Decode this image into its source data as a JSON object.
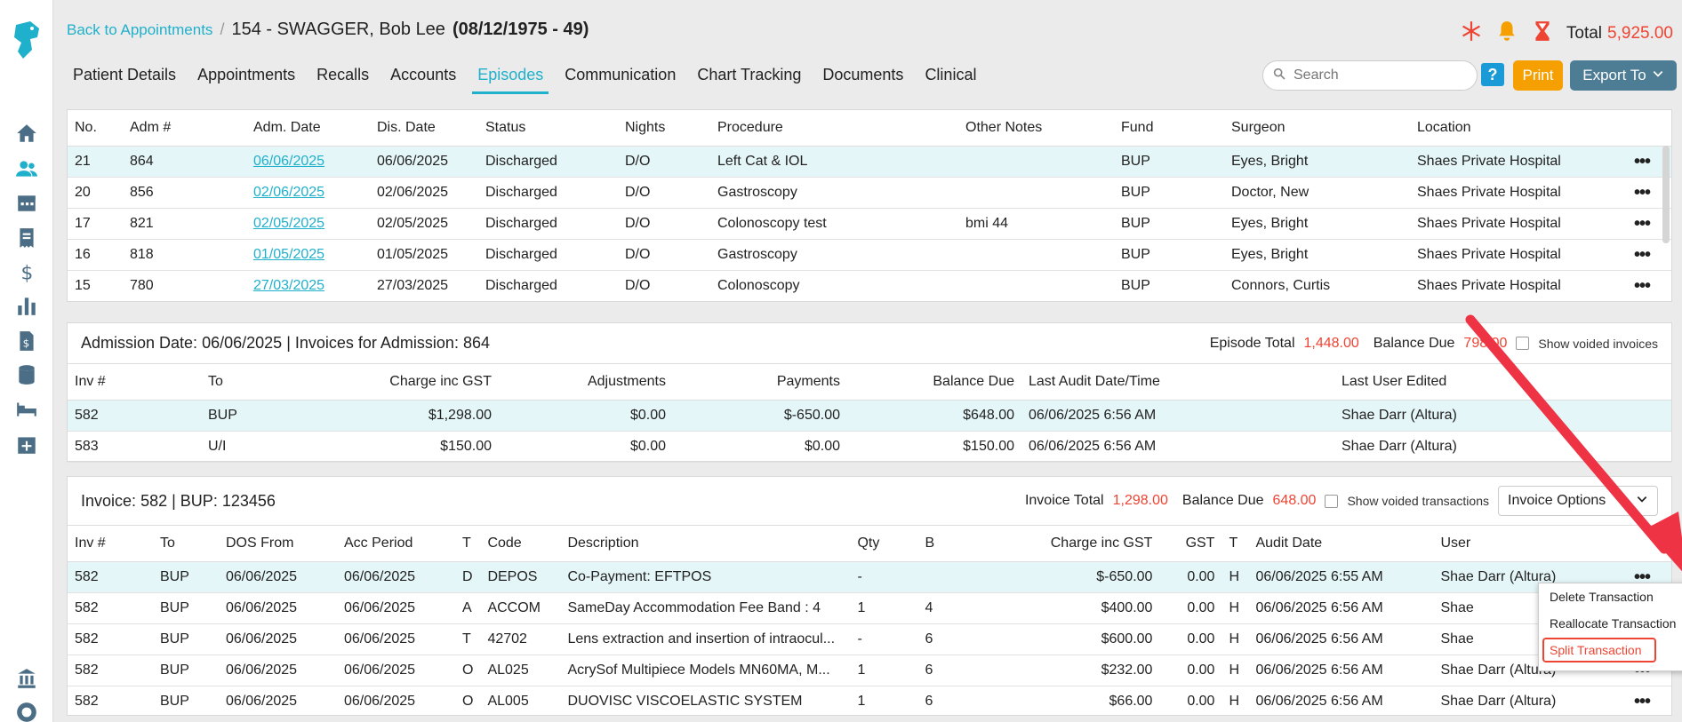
{
  "header": {
    "back_link": "Back to Appointments",
    "separator": "/",
    "patient_title": "154 - SWAGGER, Bob Lee",
    "patient_dob": "(08/12/1975 - 49)",
    "total_label": "Total",
    "total_value": "5,925.00"
  },
  "tabs": [
    {
      "label": "Patient Details"
    },
    {
      "label": "Appointments"
    },
    {
      "label": "Recalls"
    },
    {
      "label": "Accounts"
    },
    {
      "label": "Episodes"
    },
    {
      "label": "Communication"
    },
    {
      "label": "Chart Tracking"
    },
    {
      "label": "Documents"
    },
    {
      "label": "Clinical"
    }
  ],
  "active_tab": "Episodes",
  "toolbar": {
    "search_placeholder": "Search",
    "help_label": "?",
    "print_label": "Print",
    "export_label": "Export To"
  },
  "episodes": {
    "columns": [
      "No.",
      "Adm #",
      "Adm. Date",
      "Dis. Date",
      "Status",
      "Nights",
      "Procedure",
      "Other Notes",
      "Fund",
      "Surgeon",
      "Location"
    ],
    "rows": [
      {
        "no": "21",
        "adm": "864",
        "adm_date": "06/06/2025",
        "dis_date": "06/06/2025",
        "status": "Discharged",
        "nights": "D/O",
        "procedure": "Left Cat & IOL",
        "notes": "",
        "fund": "BUP",
        "surgeon": "Eyes, Bright",
        "location": "Shaes Private Hospital"
      },
      {
        "no": "20",
        "adm": "856",
        "adm_date": "02/06/2025",
        "dis_date": "02/06/2025",
        "status": "Discharged",
        "nights": "D/O",
        "procedure": "Gastroscopy",
        "notes": "",
        "fund": "BUP",
        "surgeon": "Doctor, New",
        "location": "Shaes Private Hospital"
      },
      {
        "no": "17",
        "adm": "821",
        "adm_date": "02/05/2025",
        "dis_date": "02/05/2025",
        "status": "Discharged",
        "nights": "D/O",
        "procedure": "Colonoscopy test",
        "notes": "bmi 44",
        "fund": "BUP",
        "surgeon": "Eyes, Bright",
        "location": "Shaes Private Hospital"
      },
      {
        "no": "16",
        "adm": "818",
        "adm_date": "01/05/2025",
        "dis_date": "01/05/2025",
        "status": "Discharged",
        "nights": "D/O",
        "procedure": "Gastroscopy",
        "notes": "",
        "fund": "BUP",
        "surgeon": "Eyes, Bright",
        "location": "Shaes Private Hospital"
      },
      {
        "no": "15",
        "adm": "780",
        "adm_date": "27/03/2025",
        "dis_date": "27/03/2025",
        "status": "Discharged",
        "nights": "D/O",
        "procedure": "Colonoscopy",
        "notes": "",
        "fund": "BUP",
        "surgeon": "Connors, Curtis",
        "location": "Shaes Private Hospital"
      }
    ]
  },
  "admission": {
    "date_label": "Admission Date:",
    "date_value": "06/06/2025",
    "invoices_label": "| Invoices for Admission:",
    "invoices_value": "864",
    "episode_total_label": "Episode Total",
    "episode_total_value": "1,448.00",
    "balance_due_label": "Balance Due",
    "balance_due_value": "798.00",
    "show_voided_label": "Show voided invoices",
    "columns": [
      "Inv #",
      "To",
      "Charge inc GST",
      "Adjustments",
      "Payments",
      "Balance Due",
      "Last Audit Date/Time",
      "Last User Edited"
    ],
    "rows": [
      {
        "inv": "582",
        "to": "BUP",
        "charge": "$1,298.00",
        "adj": "$0.00",
        "pay": "$-650.00",
        "bal": "$648.00",
        "audit": "06/06/2025 6:56 AM",
        "user": "Shae Darr (Altura)"
      },
      {
        "inv": "583",
        "to": "U/I",
        "charge": "$150.00",
        "adj": "$0.00",
        "pay": "$0.00",
        "bal": "$150.00",
        "audit": "06/06/2025 6:56 AM",
        "user": "Shae Darr (Altura)"
      }
    ]
  },
  "invoice": {
    "label": "Invoice:",
    "number": "582",
    "fund_sep": "| BUP:",
    "fund_no": "123456",
    "total_label": "Invoice Total",
    "total_value": "1,298.00",
    "balance_label": "Balance Due",
    "balance_value": "648.00",
    "show_voided_label": "Show voided transactions",
    "options_label": "Invoice Options",
    "columns": [
      "Inv #",
      "To",
      "DOS From",
      "Acc Period",
      "T",
      "Code",
      "Description",
      "Qty",
      "B",
      "Charge inc GST",
      "GST",
      "T",
      "Audit Date",
      "User"
    ],
    "rows": [
      {
        "inv": "582",
        "to": "BUP",
        "dos": "06/06/2025",
        "acc": "06/06/2025",
        "t": "D",
        "code": "DEPOS",
        "desc": "Co-Payment: EFTPOS",
        "qty": "-",
        "b": "",
        "charge": "$-650.00",
        "gst": "0.00",
        "t2": "H",
        "audit": "06/06/2025 6:55 AM",
        "user": "Shae Darr (Altura)"
      },
      {
        "inv": "582",
        "to": "BUP",
        "dos": "06/06/2025",
        "acc": "06/06/2025",
        "t": "A",
        "code": "ACCOM",
        "desc": "SameDay Accommodation Fee Band : 4",
        "qty": "1",
        "b": "4",
        "charge": "$400.00",
        "gst": "0.00",
        "t2": "H",
        "audit": "06/06/2025 6:56 AM",
        "user": "Shae"
      },
      {
        "inv": "582",
        "to": "BUP",
        "dos": "06/06/2025",
        "acc": "06/06/2025",
        "t": "T",
        "code": "42702",
        "desc": "Lens extraction and insertion of intraocul...",
        "qty": "-",
        "b": "6",
        "charge": "$600.00",
        "gst": "0.00",
        "t2": "H",
        "audit": "06/06/2025 6:56 AM",
        "user": "Shae"
      },
      {
        "inv": "582",
        "to": "BUP",
        "dos": "06/06/2025",
        "acc": "06/06/2025",
        "t": "O",
        "code": "AL025",
        "desc": "AcrySof Multipiece Models MN60MA, M...",
        "qty": "1",
        "b": "6",
        "charge": "$232.00",
        "gst": "0.00",
        "t2": "H",
        "audit": "06/06/2025 6:56 AM",
        "user": "Shae Darr (Altura)"
      },
      {
        "inv": "582",
        "to": "BUP",
        "dos": "06/06/2025",
        "acc": "06/06/2025",
        "t": "O",
        "code": "AL005",
        "desc": "DUOVISC VISCOELASTIC SYSTEM",
        "qty": "1",
        "b": "6",
        "charge": "$66.00",
        "gst": "0.00",
        "t2": "H",
        "audit": "06/06/2025 6:56 AM",
        "user": "Shae Darr (Altura)"
      }
    ]
  },
  "context_menu": {
    "items": [
      "Delete Transaction",
      "Reallocate Transaction",
      "Split Transaction"
    ]
  },
  "colors": {
    "accent": "#1fb0cc",
    "alert_red": "#ee4433",
    "print_orange": "#f5a000",
    "export_slate": "#4d7c95",
    "selected_row": "#e5f6f8"
  }
}
